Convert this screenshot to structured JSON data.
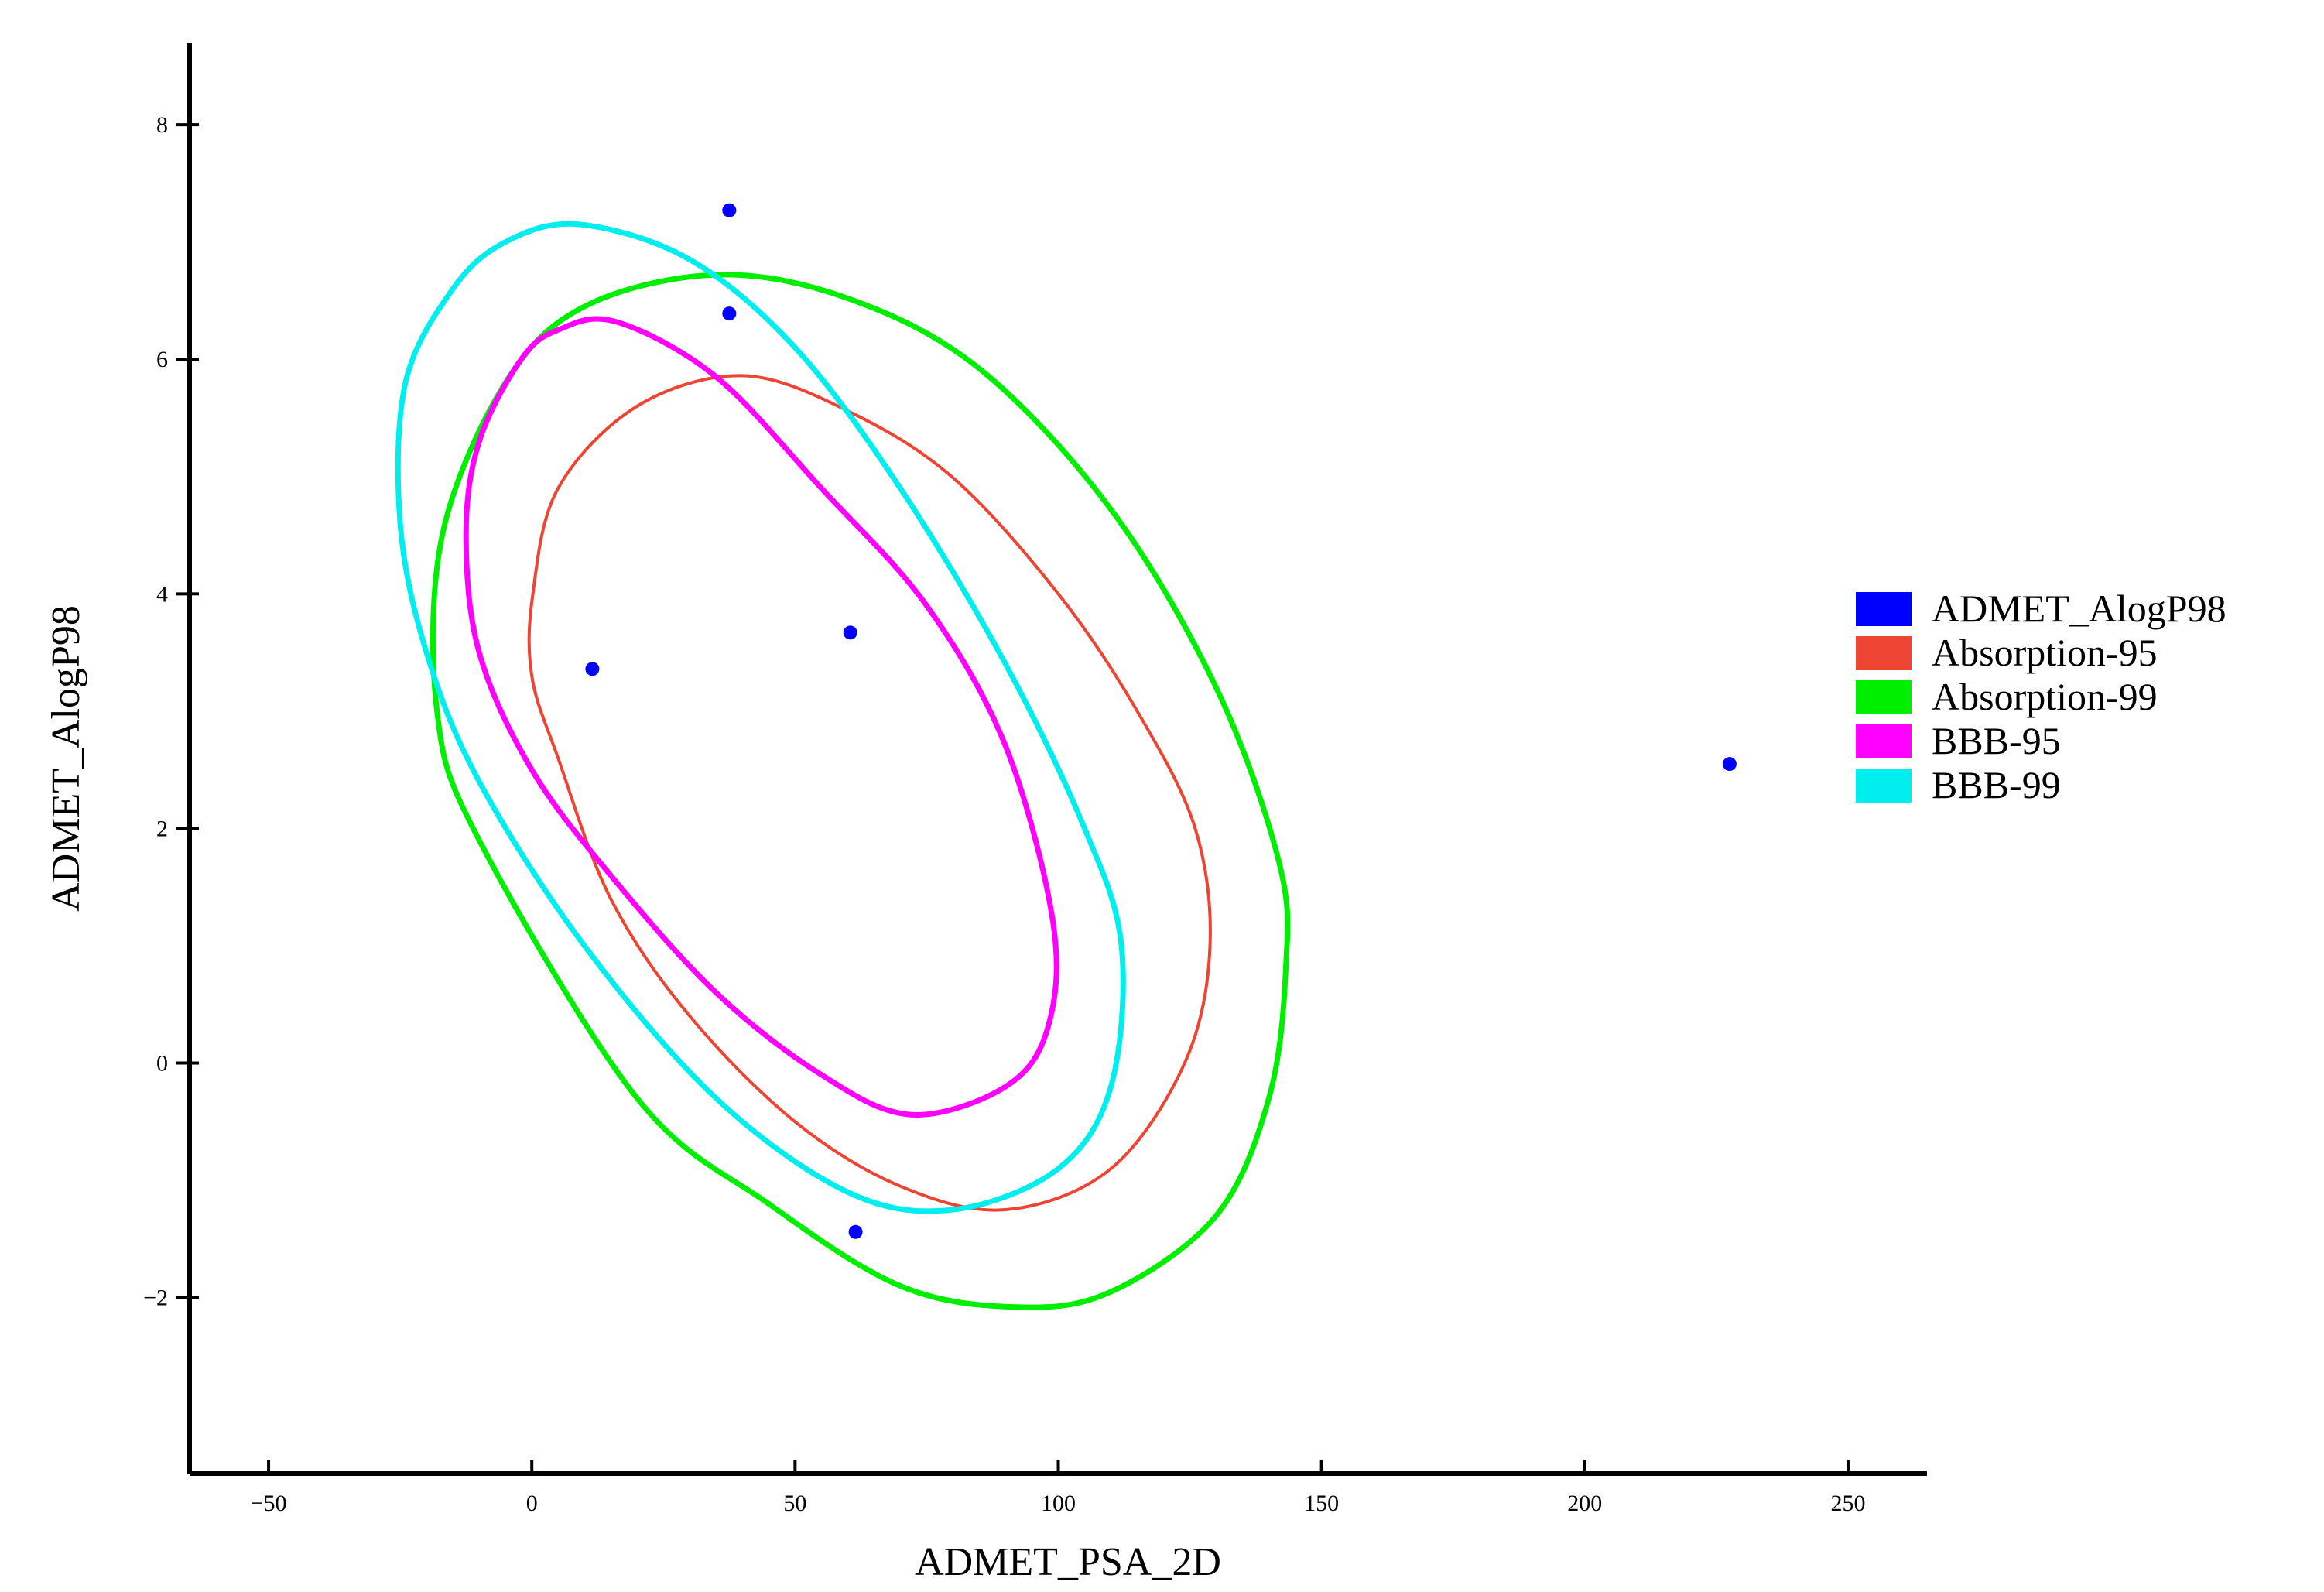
{
  "chart_data": {
    "type": "scatter",
    "title": "",
    "xlabel": "ADMET_PSA_2D",
    "ylabel": "ADMET_AlogP98",
    "xlim": [
      -65,
      265
    ],
    "ylim": [
      -3.5,
      8.7
    ],
    "xticks": [
      -50,
      0,
      50,
      100,
      150,
      200,
      250
    ],
    "yticks": [
      -2,
      0,
      2,
      4,
      6,
      8
    ],
    "xtick_labels": [
      "−50",
      "0",
      "50",
      "100",
      "150",
      "200",
      "250"
    ],
    "ytick_labels": [
      "−2",
      "0",
      "2",
      "4",
      "6",
      "8"
    ],
    "grid": false,
    "legend_position": "right",
    "series": [
      {
        "name": "ADMET_AlogP98",
        "kind": "points",
        "color": "#0000ff",
        "points": [
          [
            37.5,
            7.27
          ],
          [
            37.5,
            6.39
          ],
          [
            11.5,
            3.36
          ],
          [
            60.5,
            3.67
          ],
          [
            61.5,
            -1.44
          ],
          [
            227.5,
            2.55
          ]
        ]
      },
      {
        "name": "Absorption-95",
        "kind": "ellipse",
        "color": "#ee4433",
        "ellipse": [
          [
            40.0,
            5.86
          ],
          [
            60.0,
            5.56
          ],
          [
            80.0,
            4.99
          ],
          [
            100.0,
            4.0
          ],
          [
            115.0,
            3.0
          ],
          [
            126.0,
            2.0
          ],
          [
            128.8,
            0.98
          ],
          [
            124.0,
            0.0
          ],
          [
            110.0,
            -0.9
          ],
          [
            90.0,
            -1.25
          ],
          [
            70.0,
            -1.05
          ],
          [
            50.0,
            -0.5
          ],
          [
            30.0,
            0.4
          ],
          [
            15.0,
            1.4
          ],
          [
            5.0,
            2.6
          ],
          [
            0.0,
            3.3
          ],
          [
            0.2,
            4.0
          ],
          [
            5.0,
            4.9
          ],
          [
            20.0,
            5.6
          ]
        ]
      },
      {
        "name": "Absorption-99",
        "kind": "ellipse",
        "color": "#00ee00",
        "ellipse": [
          [
            35.0,
            6.72
          ],
          [
            60.0,
            6.52
          ],
          [
            85.0,
            5.92
          ],
          [
            110.0,
            4.72
          ],
          [
            130.0,
            3.2
          ],
          [
            142.0,
            1.7
          ],
          [
            143.2,
            0.8
          ],
          [
            140.0,
            -0.3
          ],
          [
            130.0,
            -1.3
          ],
          [
            110.0,
            -1.95
          ],
          [
            92.0,
            -2.08
          ],
          [
            70.0,
            -1.9
          ],
          [
            45.0,
            -1.2
          ],
          [
            20.0,
            -0.3
          ],
          [
            -10.0,
            1.9
          ],
          [
            -18.0,
            3.0
          ],
          [
            -17.0,
            4.5
          ],
          [
            -5.0,
            5.8
          ],
          [
            10.0,
            6.45
          ]
        ]
      },
      {
        "name": "BBB-95",
        "kind": "ellipse",
        "color": "#ff00ff",
        "ellipse": [
          [
            16.0,
            6.32
          ],
          [
            35.0,
            5.85
          ],
          [
            55.0,
            4.9
          ],
          [
            75.0,
            3.9
          ],
          [
            90.0,
            2.7
          ],
          [
            99.0,
            1.2
          ],
          [
            98.0,
            0.3
          ],
          [
            90.0,
            -0.2
          ],
          [
            72.0,
            -0.44
          ],
          [
            55.0,
            -0.1
          ],
          [
            35.0,
            0.6
          ],
          [
            15.0,
            1.6
          ],
          [
            0.0,
            2.5
          ],
          [
            -10.0,
            3.5
          ],
          [
            -12.5,
            4.5
          ],
          [
            -10.0,
            5.3
          ],
          [
            -2.0,
            6.0
          ],
          [
            5.0,
            6.25
          ]
        ]
      },
      {
        "name": "BBB-99",
        "kind": "ellipse",
        "color": "#00eeee",
        "ellipse": [
          [
            9.0,
            7.15
          ],
          [
            30.0,
            6.85
          ],
          [
            50.0,
            6.1
          ],
          [
            70.0,
            4.9
          ],
          [
            90.0,
            3.4
          ],
          [
            105.0,
            2.0
          ],
          [
            112.0,
            1.0
          ],
          [
            110.0,
            -0.2
          ],
          [
            100.0,
            -0.9
          ],
          [
            80.0,
            -1.25
          ],
          [
            60.0,
            -1.1
          ],
          [
            35.0,
            -0.3
          ],
          [
            10.0,
            1.0
          ],
          [
            -10.0,
            2.4
          ],
          [
            -20.0,
            3.5
          ],
          [
            -25.0,
            4.6
          ],
          [
            -24.0,
            5.8
          ],
          [
            -15.0,
            6.6
          ],
          [
            -5.0,
            7.0
          ]
        ]
      }
    ]
  }
}
